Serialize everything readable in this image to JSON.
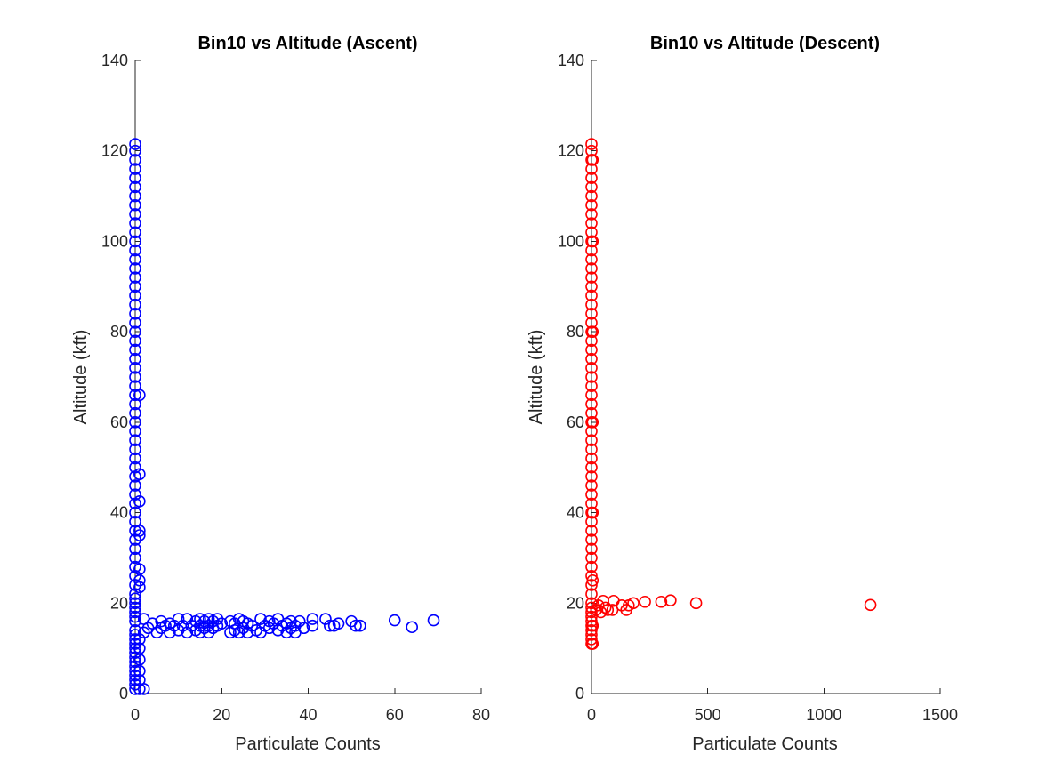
{
  "chart_data": [
    {
      "type": "scatter",
      "title": "Bin10 vs Altitude (Ascent)",
      "xlabel": "Particulate Counts",
      "ylabel": "Altitude (kft)",
      "xlim": [
        0,
        80
      ],
      "ylim": [
        0,
        140
      ],
      "xticks": [
        "0",
        "20",
        "40",
        "60",
        "80"
      ],
      "yticks": [
        "0",
        "20",
        "40",
        "60",
        "80",
        "100",
        "120",
        "140"
      ],
      "grid": false,
      "legend": "none",
      "marker": "open-circle",
      "color": "#0000ff",
      "series": [
        {
          "points": [
            [
              0,
              1
            ],
            [
              0,
              2
            ],
            [
              0,
              3
            ],
            [
              0,
              4
            ],
            [
              0,
              5
            ],
            [
              0,
              6
            ],
            [
              0,
              7
            ],
            [
              0,
              8
            ],
            [
              0,
              9
            ],
            [
              0,
              10
            ],
            [
              0,
              11
            ],
            [
              0,
              12
            ],
            [
              0,
              13
            ],
            [
              0,
              14
            ],
            [
              0,
              16
            ],
            [
              0,
              17
            ],
            [
              0,
              18
            ],
            [
              0,
              19
            ],
            [
              0,
              20
            ],
            [
              0,
              21
            ],
            [
              0,
              22
            ],
            [
              0,
              24
            ],
            [
              0,
              26
            ],
            [
              0,
              28
            ],
            [
              0,
              30
            ],
            [
              0,
              32
            ],
            [
              0,
              34
            ],
            [
              0,
              36
            ],
            [
              0,
              38
            ],
            [
              0,
              40
            ],
            [
              0,
              42
            ],
            [
              0,
              44
            ],
            [
              0,
              46
            ],
            [
              0,
              48
            ],
            [
              0,
              50
            ],
            [
              0,
              52
            ],
            [
              0,
              54
            ],
            [
              0,
              56
            ],
            [
              0,
              58
            ],
            [
              0,
              60
            ],
            [
              0,
              62
            ],
            [
              0,
              64
            ],
            [
              0,
              66
            ],
            [
              0,
              68
            ],
            [
              0,
              70
            ],
            [
              0,
              72
            ],
            [
              0,
              74
            ],
            [
              0,
              76
            ],
            [
              0,
              78
            ],
            [
              0,
              80
            ],
            [
              0,
              82
            ],
            [
              0,
              84
            ],
            [
              0,
              86
            ],
            [
              0,
              88
            ],
            [
              0,
              90
            ],
            [
              0,
              92
            ],
            [
              0,
              94
            ],
            [
              0,
              96
            ],
            [
              0,
              98
            ],
            [
              0,
              100
            ],
            [
              0,
              102
            ],
            [
              0,
              104
            ],
            [
              0,
              106
            ],
            [
              0,
              108
            ],
            [
              0,
              110
            ],
            [
              0,
              112
            ],
            [
              0,
              114
            ],
            [
              0,
              116
            ],
            [
              0,
              118
            ],
            [
              0,
              120
            ],
            [
              0,
              121.5
            ],
            [
              1,
              1
            ],
            [
              1,
              3
            ],
            [
              1,
              5
            ],
            [
              1,
              7.5
            ],
            [
              1,
              10
            ],
            [
              1,
              12
            ],
            [
              1,
              23.5
            ],
            [
              1,
              25
            ],
            [
              1,
              27.5
            ],
            [
              1,
              35
            ],
            [
              1,
              36
            ],
            [
              1,
              42.5
            ],
            [
              1,
              48.5
            ],
            [
              1,
              66
            ],
            [
              2,
              1
            ],
            [
              2,
              13.5
            ],
            [
              2,
              16.5
            ],
            [
              3,
              14.5
            ],
            [
              4,
              15.5
            ],
            [
              5,
              13.5
            ],
            [
              6,
              14.5
            ],
            [
              6,
              16
            ],
            [
              7,
              15
            ],
            [
              8,
              13.5
            ],
            [
              8,
              15.5
            ],
            [
              9,
              15
            ],
            [
              10,
              14
            ],
            [
              10,
              16.5
            ],
            [
              11,
              15
            ],
            [
              12,
              13.5
            ],
            [
              12,
              16.5
            ],
            [
              13,
              15
            ],
            [
              14,
              14
            ],
            [
              14,
              16
            ],
            [
              15,
              13.5
            ],
            [
              15,
              15
            ],
            [
              15,
              16.5
            ],
            [
              16,
              14.5
            ],
            [
              16,
              16
            ],
            [
              17,
              13.5
            ],
            [
              17,
              15
            ],
            [
              17,
              16.5
            ],
            [
              18,
              14.5
            ],
            [
              18,
              16
            ],
            [
              19,
              15
            ],
            [
              19,
              16.5
            ],
            [
              20,
              15.5
            ],
            [
              22,
              13.5
            ],
            [
              22,
              16
            ],
            [
              23,
              14
            ],
            [
              23,
              15.5
            ],
            [
              24,
              13.5
            ],
            [
              24,
              16.5
            ],
            [
              25,
              14.5
            ],
            [
              25,
              16
            ],
            [
              26,
              13.5
            ],
            [
              26,
              15.5
            ],
            [
              27,
              15
            ],
            [
              28,
              14
            ],
            [
              29,
              13.5
            ],
            [
              29,
              16.5
            ],
            [
              30,
              15
            ],
            [
              31,
              14.5
            ],
            [
              31,
              16
            ],
            [
              32,
              15.5
            ],
            [
              33,
              14
            ],
            [
              33,
              16.5
            ],
            [
              34,
              15
            ],
            [
              35,
              13.5
            ],
            [
              35,
              15.5
            ],
            [
              36,
              14.5
            ],
            [
              36,
              16
            ],
            [
              37,
              15
            ],
            [
              37,
              13.5
            ],
            [
              38,
              16
            ],
            [
              39,
              14.5
            ],
            [
              41,
              15
            ],
            [
              41,
              16.5
            ],
            [
              44,
              16.5
            ],
            [
              45,
              15
            ],
            [
              46,
              15
            ],
            [
              47,
              15.5
            ],
            [
              50,
              16
            ],
            [
              51,
              15
            ],
            [
              52,
              15
            ],
            [
              60,
              16.2
            ],
            [
              64,
              14.7
            ],
            [
              69,
              16.2
            ]
          ]
        }
      ]
    },
    {
      "type": "scatter",
      "title": "Bin10 vs Altitude (Descent)",
      "xlabel": "Particulate Counts",
      "ylabel": "Altitude (kft)",
      "xlim": [
        0,
        1500
      ],
      "ylim": [
        0,
        140
      ],
      "xticks": [
        "0",
        "500",
        "1000",
        "1500"
      ],
      "yticks": [
        "0",
        "20",
        "40",
        "60",
        "80",
        "100",
        "120",
        "140"
      ],
      "grid": false,
      "legend": "none",
      "marker": "open-circle",
      "color": "#ff0000",
      "series": [
        {
          "points": [
            [
              0,
              11
            ],
            [
              0,
              12
            ],
            [
              0,
              13
            ],
            [
              0,
              14
            ],
            [
              0,
              15
            ],
            [
              0,
              16
            ],
            [
              0,
              17
            ],
            [
              0,
              18
            ],
            [
              0,
              19
            ],
            [
              0,
              20
            ],
            [
              0,
              22
            ],
            [
              0,
              24
            ],
            [
              0,
              26
            ],
            [
              0,
              28
            ],
            [
              0,
              30
            ],
            [
              0,
              32
            ],
            [
              0,
              34
            ],
            [
              0,
              36
            ],
            [
              0,
              38
            ],
            [
              0,
              40
            ],
            [
              0,
              42
            ],
            [
              0,
              44
            ],
            [
              0,
              46
            ],
            [
              0,
              48
            ],
            [
              0,
              50
            ],
            [
              0,
              52
            ],
            [
              0,
              54
            ],
            [
              0,
              56
            ],
            [
              0,
              58
            ],
            [
              0,
              60
            ],
            [
              0,
              62
            ],
            [
              0,
              64
            ],
            [
              0,
              66
            ],
            [
              0,
              68
            ],
            [
              0,
              70
            ],
            [
              0,
              72
            ],
            [
              0,
              74
            ],
            [
              0,
              76
            ],
            [
              0,
              78
            ],
            [
              0,
              80
            ],
            [
              0,
              82
            ],
            [
              0,
              84
            ],
            [
              0,
              86
            ],
            [
              0,
              88
            ],
            [
              0,
              90
            ],
            [
              0,
              92
            ],
            [
              0,
              94
            ],
            [
              0,
              96
            ],
            [
              0,
              98
            ],
            [
              0,
              100
            ],
            [
              0,
              102
            ],
            [
              0,
              104
            ],
            [
              0,
              106
            ],
            [
              0,
              108
            ],
            [
              0,
              110
            ],
            [
              0,
              112
            ],
            [
              0,
              114
            ],
            [
              0,
              116
            ],
            [
              0,
              118
            ],
            [
              0,
              120
            ],
            [
              0,
              121.5
            ],
            [
              5,
              11
            ],
            [
              5,
              15
            ],
            [
              5,
              25
            ],
            [
              5,
              40
            ],
            [
              5,
              60
            ],
            [
              5,
              80
            ],
            [
              5,
              100
            ],
            [
              5,
              118
            ],
            [
              20,
              18.5
            ],
            [
              30,
              19.5
            ],
            [
              40,
              18
            ],
            [
              50,
              20.5
            ],
            [
              60,
              19
            ],
            [
              70,
              18.5
            ],
            [
              90,
              18.5
            ],
            [
              95,
              20.5
            ],
            [
              130,
              19.5
            ],
            [
              150,
              18.5
            ],
            [
              160,
              19.5
            ],
            [
              180,
              20
            ],
            [
              230,
              20.3
            ],
            [
              300,
              20.3
            ],
            [
              340,
              20.6
            ],
            [
              450,
              20
            ],
            [
              1200,
              19.6
            ]
          ]
        }
      ]
    }
  ]
}
